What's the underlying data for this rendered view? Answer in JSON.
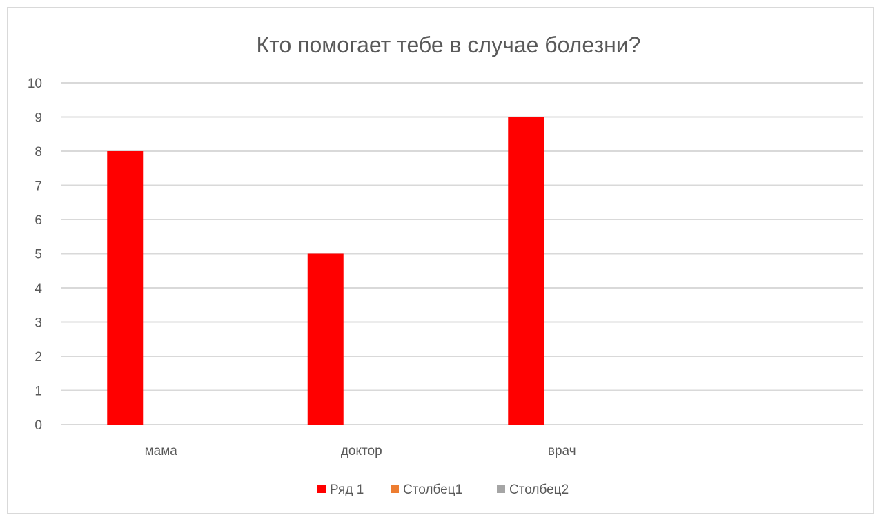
{
  "chart_data": {
    "type": "bar",
    "title": "Кто помогает тебе в случае болезни?",
    "categories": [
      "мама",
      "доктор",
      "врач"
    ],
    "series": [
      {
        "name": "Ряд 1",
        "color": "#ff0000",
        "values": [
          8,
          5,
          9
        ]
      },
      {
        "name": "Столбец1",
        "color": "#ed7d31",
        "values": [
          null,
          null,
          null
        ]
      },
      {
        "name": "Столбец2",
        "color": "#a5a5a5",
        "values": [
          null,
          null,
          null
        ]
      }
    ],
    "ylim": [
      0,
      10
    ],
    "yticks": [
      "0",
      "1",
      "2",
      "3",
      "4",
      "5",
      "6",
      "7",
      "8",
      "9",
      "10"
    ],
    "grid": true,
    "legend_position": "bottom",
    "colors": {
      "text": "#595959",
      "grid": "#d9d9d9",
      "border": "#d9d9d9"
    }
  }
}
